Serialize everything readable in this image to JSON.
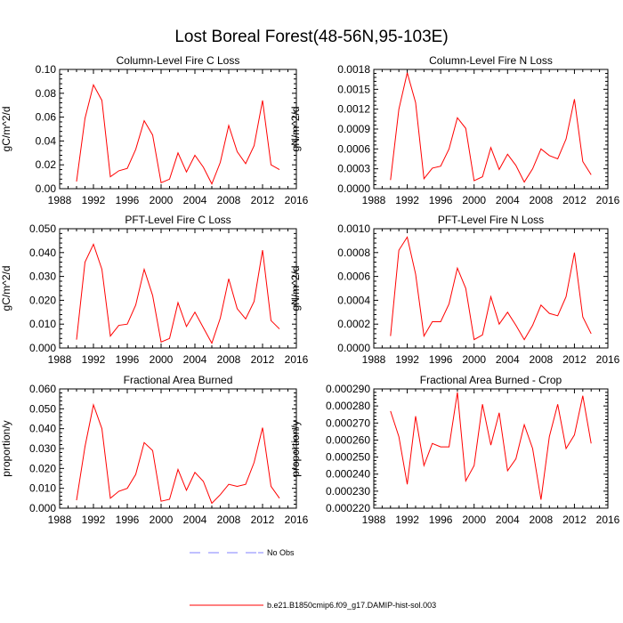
{
  "figure": {
    "title": "Lost Boreal Forest(48-56N,95-103E)"
  },
  "legend": {
    "items": [
      {
        "label": "No Obs",
        "style": "dashed",
        "color": "#8080ff"
      },
      {
        "label": "b.e21.B1850cmip6.f09_g17.DAMIP-hist-sol.003",
        "style": "solid",
        "color": "#ff0000"
      }
    ]
  },
  "chart_data": [
    {
      "type": "line",
      "title": "Column-Level Fire C Loss",
      "xlabel": "",
      "ylabel": "gC/m^2/d",
      "xlim": [
        1988,
        2016
      ],
      "ylim": [
        0,
        0.1
      ],
      "xticks": [
        "1988",
        "1992",
        "1996",
        "2000",
        "2004",
        "2008",
        "2012",
        "2016"
      ],
      "yticks": [
        "0.00",
        "0.02",
        "0.04",
        "0.06",
        "0.08",
        "0.10"
      ],
      "series": [
        {
          "color": "#ff0000",
          "x": [
            1990,
            1991,
            1992,
            1993,
            1994,
            1995,
            1996,
            1997,
            1998,
            1999,
            2000,
            2001,
            2002,
            2003,
            2004,
            2005,
            2006,
            2007,
            2008,
            2009,
            2010,
            2011,
            2012,
            2013,
            2014
          ],
          "y": [
            0.006,
            0.059,
            0.087,
            0.074,
            0.01,
            0.015,
            0.017,
            0.033,
            0.057,
            0.045,
            0.005,
            0.008,
            0.03,
            0.014,
            0.028,
            0.018,
            0.004,
            0.022,
            0.053,
            0.031,
            0.021,
            0.036,
            0.074,
            0.02,
            0.016
          ]
        }
      ]
    },
    {
      "type": "line",
      "title": "Column-Level Fire N Loss",
      "xlabel": "",
      "ylabel": "gN/m^2/d",
      "xlim": [
        1988,
        2016
      ],
      "ylim": [
        0,
        0.0018
      ],
      "xticks": [
        "1988",
        "1992",
        "1996",
        "2000",
        "2004",
        "2008",
        "2012",
        "2016"
      ],
      "yticks": [
        "0.0000",
        "0.0003",
        "0.0006",
        "0.0009",
        "0.0012",
        "0.0015",
        "0.0018"
      ],
      "series": [
        {
          "color": "#ff0000",
          "x": [
            1990,
            1991,
            1992,
            1993,
            1994,
            1995,
            1996,
            1997,
            1998,
            1999,
            2000,
            2001,
            2002,
            2003,
            2004,
            2005,
            2006,
            2007,
            2008,
            2009,
            2010,
            2011,
            2012,
            2013,
            2014
          ],
          "y": [
            0.00013,
            0.0012,
            0.00175,
            0.0013,
            0.00015,
            0.00031,
            0.00034,
            0.0006,
            0.00107,
            0.00091,
            0.00012,
            0.00018,
            0.00062,
            0.00029,
            0.00052,
            0.00035,
            0.0001,
            0.0003,
            0.0006,
            0.0005,
            0.00045,
            0.00075,
            0.00135,
            0.00041,
            0.00021
          ]
        }
      ]
    },
    {
      "type": "line",
      "title": "PFT-Level Fire C Loss",
      "xlabel": "",
      "ylabel": "gC/m^2/d",
      "xlim": [
        1988,
        2016
      ],
      "ylim": [
        0,
        0.05
      ],
      "xticks": [
        "1988",
        "1992",
        "1996",
        "2000",
        "2004",
        "2008",
        "2012",
        "2016"
      ],
      "yticks": [
        "0.000",
        "0.010",
        "0.020",
        "0.030",
        "0.040",
        "0.050"
      ],
      "series": [
        {
          "color": "#ff0000",
          "x": [
            1990,
            1991,
            1992,
            1993,
            1994,
            1995,
            1996,
            1997,
            1998,
            1999,
            2000,
            2001,
            2002,
            2003,
            2004,
            2005,
            2006,
            2007,
            2008,
            2009,
            2010,
            2011,
            2012,
            2013,
            2014
          ],
          "y": [
            0.0035,
            0.036,
            0.0435,
            0.033,
            0.005,
            0.0095,
            0.01,
            0.018,
            0.033,
            0.022,
            0.0025,
            0.004,
            0.019,
            0.009,
            0.015,
            0.0085,
            0.002,
            0.0125,
            0.029,
            0.0165,
            0.0122,
            0.0195,
            0.041,
            0.0115,
            0.008
          ]
        }
      ]
    },
    {
      "type": "line",
      "title": "PFT-Level Fire N Loss",
      "xlabel": "",
      "ylabel": "gN/m^2/d",
      "xlim": [
        1988,
        2016
      ],
      "ylim": [
        0,
        0.001
      ],
      "xticks": [
        "1988",
        "1992",
        "1996",
        "2000",
        "2004",
        "2008",
        "2012",
        "2016"
      ],
      "yticks": [
        "0.0000",
        "0.0002",
        "0.0004",
        "0.0006",
        "0.0008",
        "0.0010"
      ],
      "series": [
        {
          "color": "#ff0000",
          "x": [
            1990,
            1991,
            1992,
            1993,
            1994,
            1995,
            1996,
            1997,
            1998,
            1999,
            2000,
            2001,
            2002,
            2003,
            2004,
            2005,
            2006,
            2007,
            2008,
            2009,
            2010,
            2011,
            2012,
            2013,
            2014
          ],
          "y": [
            0.0001,
            0.00082,
            0.00093,
            0.00062,
            0.0001,
            0.00022,
            0.00022,
            0.00037,
            0.00067,
            0.0005,
            7e-05,
            0.00011,
            0.00043,
            0.0002,
            0.0003,
            0.00019,
            7e-05,
            0.00019,
            0.00036,
            0.00029,
            0.00027,
            0.00043,
            0.0008,
            0.00026,
            0.00012
          ]
        }
      ]
    },
    {
      "type": "line",
      "title": "Fractional Area Burned",
      "xlabel": "",
      "ylabel": "proportion/y",
      "xlim": [
        1988,
        2016
      ],
      "ylim": [
        0,
        0.06
      ],
      "xticks": [
        "1988",
        "1992",
        "1996",
        "2000",
        "2004",
        "2008",
        "2012",
        "2016"
      ],
      "yticks": [
        "0.000",
        "0.010",
        "0.020",
        "0.030",
        "0.040",
        "0.050",
        "0.060"
      ],
      "series": [
        {
          "color": "#ff0000",
          "x": [
            1990,
            1991,
            1992,
            1993,
            1994,
            1995,
            1996,
            1997,
            1998,
            1999,
            2000,
            2001,
            2002,
            2003,
            2004,
            2005,
            2006,
            2007,
            2008,
            2009,
            2010,
            2011,
            2012,
            2013,
            2014
          ],
          "y": [
            0.004,
            0.031,
            0.052,
            0.04,
            0.005,
            0.0085,
            0.01,
            0.017,
            0.033,
            0.029,
            0.0035,
            0.0045,
            0.0195,
            0.009,
            0.018,
            0.0135,
            0.0025,
            0.0068,
            0.012,
            0.011,
            0.012,
            0.023,
            0.0405,
            0.011,
            0.005
          ]
        }
      ]
    },
    {
      "type": "line",
      "title": "Fractional Area Burned - Crop",
      "xlabel": "",
      "ylabel": "proportion/y",
      "xlim": [
        1988,
        2016
      ],
      "ylim": [
        0.00022,
        0.00029
      ],
      "xticks": [
        "1988",
        "1992",
        "1996",
        "2000",
        "2004",
        "2008",
        "2012",
        "2016"
      ],
      "yticks": [
        "0.000220",
        "0.000230",
        "0.000240",
        "0.000250",
        "0.000260",
        "0.000270",
        "0.000280",
        "0.000290"
      ],
      "series": [
        {
          "color": "#ff0000",
          "x": [
            1990,
            1991,
            1992,
            1993,
            1994,
            1995,
            1996,
            1997,
            1998,
            1999,
            2000,
            2001,
            2002,
            2003,
            2004,
            2005,
            2006,
            2007,
            2008,
            2009,
            2010,
            2011,
            2012,
            2013,
            2014
          ],
          "y": [
            0.000277,
            0.000262,
            0.000234,
            0.000274,
            0.000245,
            0.000258,
            0.000256,
            0.000256,
            0.000288,
            0.000236,
            0.000245,
            0.000281,
            0.000257,
            0.000276,
            0.000242,
            0.000249,
            0.000269,
            0.000255,
            0.000225,
            0.000262,
            0.000281,
            0.000255,
            0.000263,
            0.000286,
            0.000258
          ]
        }
      ]
    }
  ]
}
